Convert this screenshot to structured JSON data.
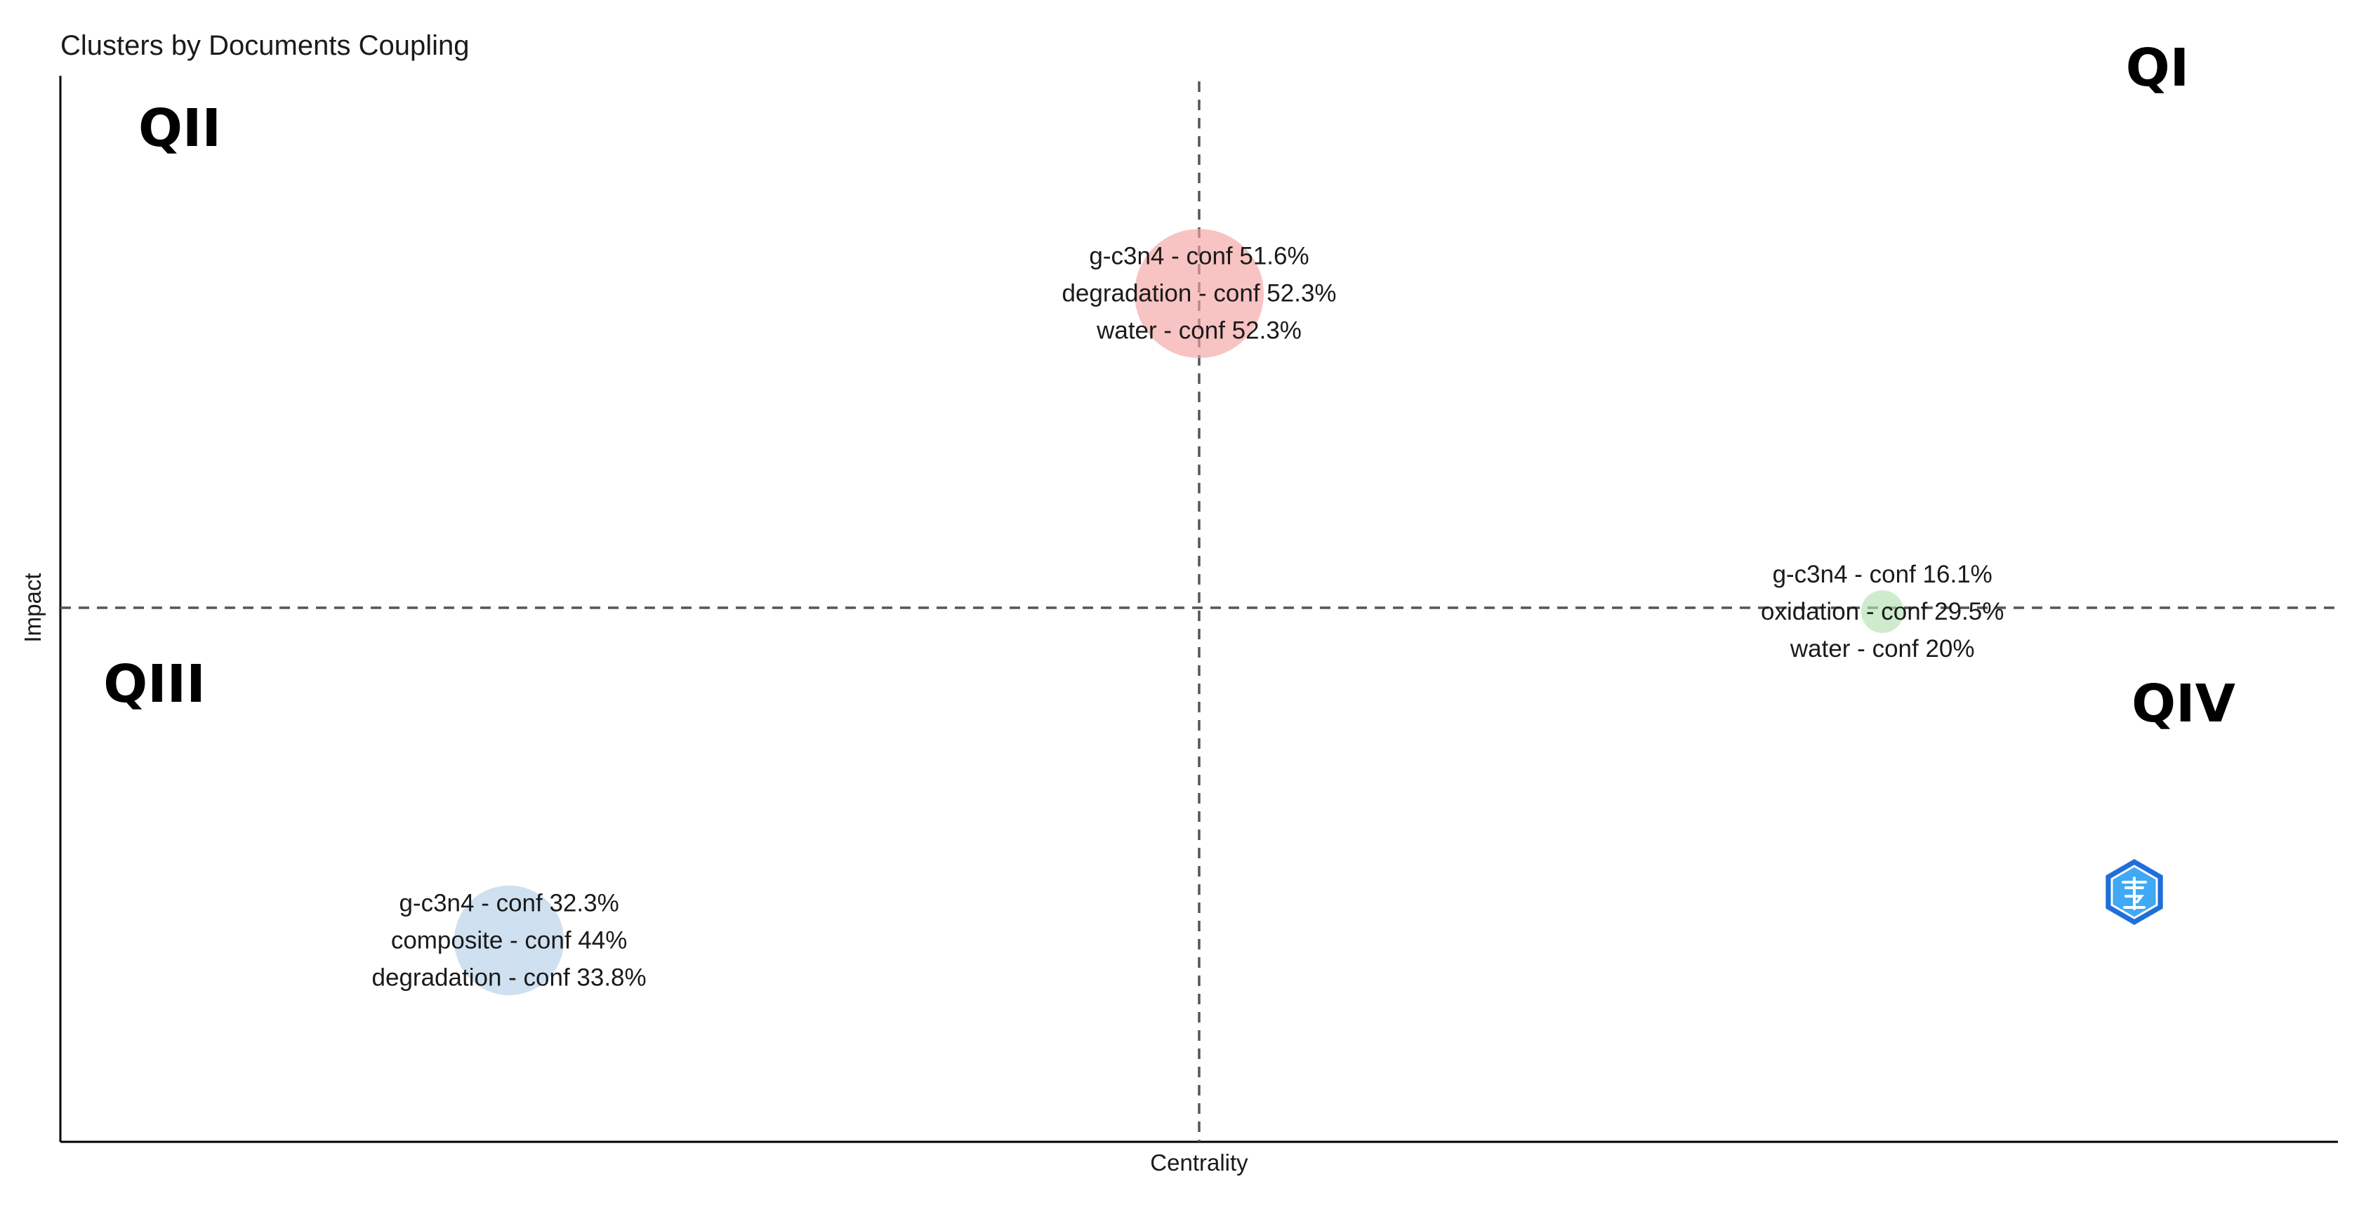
{
  "chart_data": {
    "type": "scatter",
    "title": "Clusters by Documents Coupling",
    "xlabel": "Centrality",
    "ylabel": "Impact",
    "grid": false,
    "axis_ticks": false,
    "reference_lines": "dashed vertical and horizontal lines through the chart center",
    "quadrants": [
      "QI",
      "QII",
      "QIII",
      "QIV"
    ],
    "logo_icon": "bibliometrix-logo-icon",
    "clusters": [
      {
        "color": "#f4a3a3",
        "x": 0.5,
        "y": 0.8,
        "size": 1.0,
        "labels": [
          "g-c3n4 - conf 51.6%",
          "degradation - conf 52.3%",
          "water - conf 52.3%"
        ]
      },
      {
        "color": "#b3e0b3",
        "x": 0.8,
        "y": 0.5,
        "size": 0.33,
        "labels": [
          "g-c3n4 - conf 16.1%",
          "oxidation - conf 29.5%",
          "water - conf 20%"
        ]
      },
      {
        "color": "#b5cfe8",
        "x": 0.197,
        "y": 0.19,
        "size": 0.85,
        "labels": [
          "g-c3n4 - conf 32.3%",
          "composite - conf 44%",
          "degradation - conf 33.8%"
        ]
      }
    ]
  }
}
